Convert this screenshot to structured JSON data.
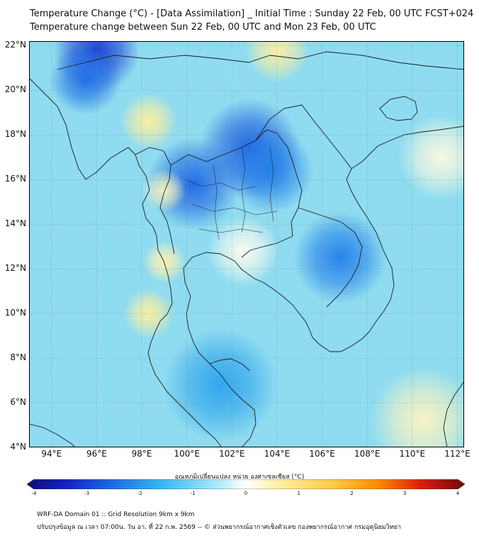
{
  "header": {
    "title_line1": "Temperature Change (°C) - [Data Assimilation] _ Initial Time : Sunday 22 Feb, 00 UTC FCST+024",
    "title_line2": "Temperature change between Sun 22 Feb, 00 UTC and Mon 23 Feb, 00 UTC"
  },
  "map": {
    "lat_labels": [
      "22°N",
      "20°N",
      "18°N",
      "16°N",
      "14°N",
      "12°N",
      "10°N",
      "8°N",
      "6°N",
      "4°N"
    ],
    "lon_labels": [
      "94°E",
      "96°E",
      "98°E",
      "100°E",
      "102°E",
      "104°E",
      "106°E",
      "108°E",
      "110°E",
      "112°E"
    ],
    "lat_values": [
      22,
      20,
      18,
      16,
      14,
      12,
      10,
      8,
      6,
      4
    ],
    "lon_values": [
      94,
      96,
      98,
      100,
      102,
      104,
      106,
      108,
      110,
      112
    ],
    "extent": {
      "lon_min": 93.0,
      "lon_max": 112.3,
      "lat_min": 4.0,
      "lat_max": 22.2
    },
    "ocean_color": "#8fdcf0",
    "land_border_color": "#1a1a1a",
    "field_blobs": [
      {
        "lon": 96.0,
        "lat": 21.8,
        "delta": -3.0,
        "spread": 1.2
      },
      {
        "lon": 95.5,
        "lat": 20.5,
        "delta": -2.4,
        "spread": 1.0
      },
      {
        "lon": 102.8,
        "lat": 17.4,
        "delta": -2.6,
        "spread": 1.4
      },
      {
        "lon": 100.3,
        "lat": 15.8,
        "delta": -2.5,
        "spread": 1.3
      },
      {
        "lon": 103.7,
        "lat": 16.4,
        "delta": -2.2,
        "spread": 1.2
      },
      {
        "lon": 106.8,
        "lat": 12.5,
        "delta": -2.2,
        "spread": 1.3
      },
      {
        "lon": 101.5,
        "lat": 6.8,
        "delta": -1.8,
        "spread": 1.6
      },
      {
        "lon": 98.3,
        "lat": 18.6,
        "delta": 0.6,
        "spread": 0.8
      },
      {
        "lon": 99.0,
        "lat": 15.5,
        "delta": 0.4,
        "spread": 0.6
      },
      {
        "lon": 99.0,
        "lat": 12.3,
        "delta": 0.5,
        "spread": 0.6
      },
      {
        "lon": 98.3,
        "lat": 10.0,
        "delta": 0.6,
        "spread": 0.7
      },
      {
        "lon": 104.0,
        "lat": 21.8,
        "delta": 0.6,
        "spread": 0.9
      },
      {
        "lon": 110.5,
        "lat": 5.2,
        "delta": 0.4,
        "spread": 1.5
      },
      {
        "lon": 111.3,
        "lat": 17.0,
        "delta": 0.2,
        "spread": 1.2
      },
      {
        "lon": 102.5,
        "lat": 12.8,
        "delta": 0.1,
        "spread": 1.0
      }
    ]
  },
  "colorbar": {
    "title": "อุณหภูมิเปลี่ยนแปลง หน่วย องศาเซลเซียส (°C)",
    "tick_labels": [
      "-4",
      "-3",
      "-2",
      "-1",
      "0",
      "1",
      "2",
      "3",
      "4"
    ],
    "tick_values": [
      -4,
      -3,
      -2,
      -1,
      0,
      1,
      2,
      3,
      4
    ],
    "stops": [
      "#0c0c7a",
      "#1428c8",
      "#1e6ee6",
      "#32b4f0",
      "#a0e6fa",
      "#ffffff",
      "#fff0a0",
      "#ffc846",
      "#ff8c00",
      "#dc1e0a",
      "#6e0a0a"
    ],
    "levels": [
      -4,
      -3.2,
      -2.4,
      -1.6,
      -0.6,
      0,
      0.6,
      1.6,
      2.4,
      3.2,
      4
    ]
  },
  "footer": {
    "line1": "WRF-DA Domain 01 :: Grid Resolution 9km x 9km",
    "line2": "ปรับปรุงข้อมูล ณ เวลา 07:00น. วัน อา. ที่ 22 ก.พ. 2569 -- © ส่วนพยากรณ์อากาศเชิงตัวเลข กองพยากรณ์อากาศ กรมอุตุนิยมวิทยา"
  }
}
